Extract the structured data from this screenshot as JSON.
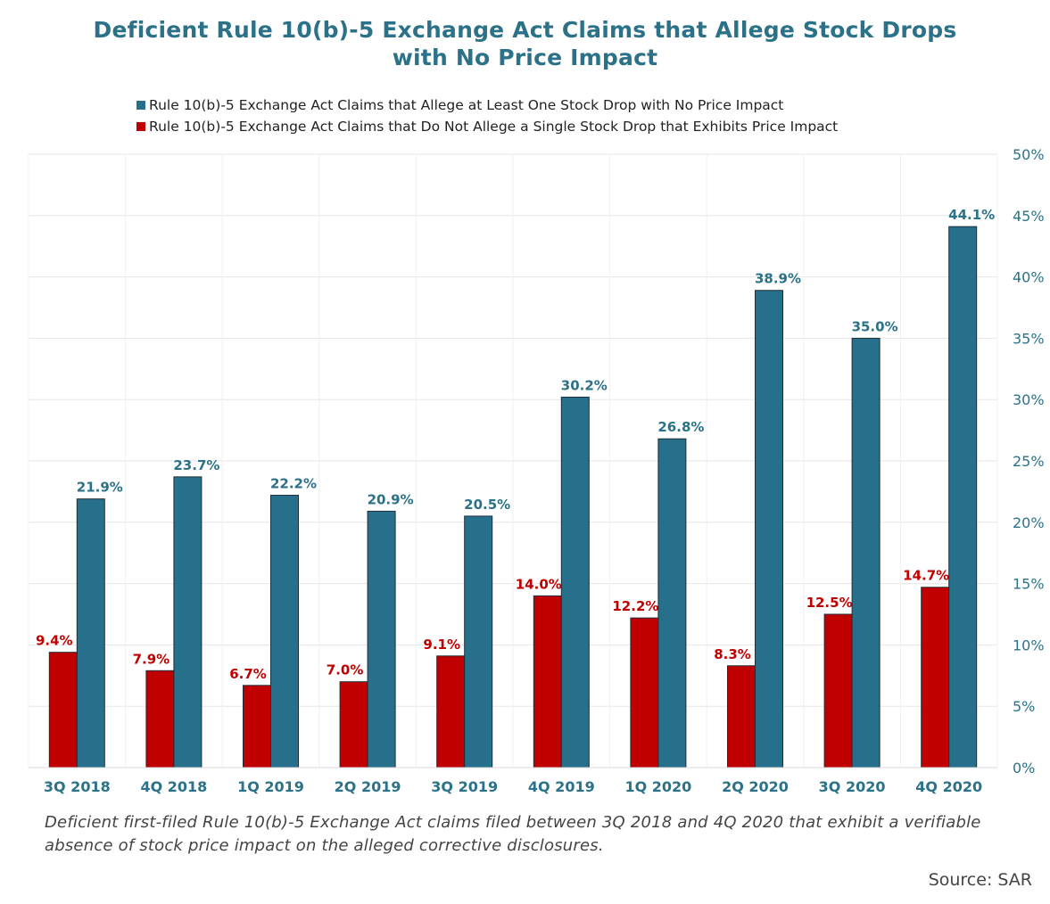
{
  "chart_data": {
    "type": "bar",
    "title": "Deficient Rule 10(b)-5 Exchange Act Claims that Allege Stock Drops with No Price Impact",
    "title_lines": [
      "Deficient Rule 10(b)-5 Exchange Act Claims that Allege Stock Drops",
      "with No Price Impact"
    ],
    "categories": [
      "3Q 2018",
      "4Q 2018",
      "1Q 2019",
      "2Q 2019",
      "3Q 2019",
      "4Q 2019",
      "1Q 2020",
      "2Q 2020",
      "3Q 2020",
      "4Q 2020"
    ],
    "series": [
      {
        "name": "Rule 10(b)-5 Exchange Act Claims that Do Not Allege a Single Stock Drop that Exhibits Price Impact",
        "color": "#c00000",
        "values": [
          9.4,
          7.9,
          6.7,
          7.0,
          9.1,
          14.0,
          12.2,
          8.3,
          12.5,
          14.7
        ],
        "labels": [
          "9.4%",
          "7.9%",
          "6.7%",
          "7.0%",
          "9.1%",
          "14.0%",
          "12.2%",
          "8.3%",
          "12.5%",
          "14.7%"
        ]
      },
      {
        "name": "Rule 10(b)-5 Exchange Act Claims that Allege at Least One Stock Drop with No Price Impact",
        "color": "#27708b",
        "values": [
          21.9,
          23.7,
          22.2,
          20.9,
          20.5,
          30.2,
          26.8,
          38.9,
          35.0,
          44.1
        ],
        "labels": [
          "21.9%",
          "23.7%",
          "22.2%",
          "20.9%",
          "20.5%",
          "30.2%",
          "26.8%",
          "38.9%",
          "35.0%",
          "44.1%"
        ]
      }
    ],
    "legend": [
      {
        "label": "Rule 10(b)-5 Exchange Act Claims that Allege at Least One Stock Drop with No Price Impact",
        "color": "#27708b"
      },
      {
        "label": "Rule 10(b)-5 Exchange Act Claims that Do Not Allege a Single Stock Drop that Exhibits Price Impact",
        "color": "#c00000"
      }
    ],
    "legend_position": "top",
    "xlabel": "",
    "ylabel": "",
    "y_axis_side": "right",
    "ylim": [
      0,
      50
    ],
    "yticks": [
      0,
      5,
      10,
      15,
      20,
      25,
      30,
      35,
      40,
      45,
      50
    ],
    "ytick_labels": [
      "0%",
      "5%",
      "10%",
      "15%",
      "20%",
      "25%",
      "30%",
      "35%",
      "40%",
      "45%",
      "50%"
    ],
    "grid": true
  },
  "footnote": "Deficient first-filed Rule 10(b)-5 Exchange Act claims filed between 3Q 2018 and 4Q 2020 that exhibit a verifiable absence of stock price impact on the alleged corrective disclosures.",
  "source": "Source: SAR",
  "colors": {
    "title": "#2b7289",
    "axis_text": "#2b7289",
    "grid": "#e6e6e6"
  }
}
